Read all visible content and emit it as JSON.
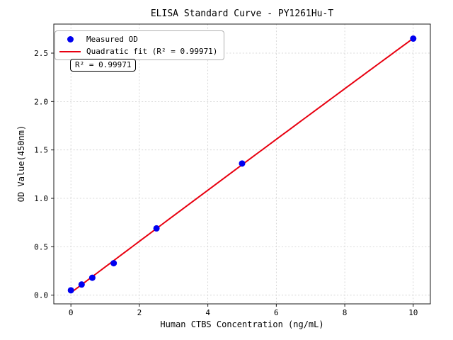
{
  "chart_data": {
    "type": "scatter",
    "title": "ELISA Standard Curve - PY1261Hu-T",
    "xlabel": "Human CTBS Concentration (ng/mL)",
    "ylabel": "OD Value(450nm)",
    "xlim": [
      -0.5,
      10.5
    ],
    "ylim": [
      -0.09,
      2.8
    ],
    "xticks": [
      0,
      2,
      4,
      6,
      8,
      10
    ],
    "xtick_labels": [
      "0",
      "2",
      "4",
      "6",
      "8",
      "10"
    ],
    "yticks": [
      0.0,
      0.5,
      1.0,
      1.5,
      2.0,
      2.5
    ],
    "ytick_labels": [
      "0.0",
      "0.5",
      "1.0",
      "1.5",
      "2.0",
      "2.5"
    ],
    "grid": true,
    "legend_position": "upper-left",
    "series": [
      {
        "name": "Measured OD",
        "type": "scatter",
        "color": "#0000f0",
        "x": [
          0,
          0.313,
          0.625,
          1.25,
          2.5,
          5,
          10
        ],
        "y": [
          0.05,
          0.11,
          0.18,
          0.33,
          0.69,
          1.36,
          2.65
        ]
      },
      {
        "name": "Quadratic fit (R² = 0.99971)",
        "type": "quadratic-fit",
        "color": "#e80010",
        "x_range": [
          0,
          10
        ]
      }
    ],
    "annotation": "R² = 0.99971",
    "colors": {
      "grid": "#cdcdcd",
      "spine": "#1a1a1a",
      "tick": "#1a1a1a"
    }
  }
}
